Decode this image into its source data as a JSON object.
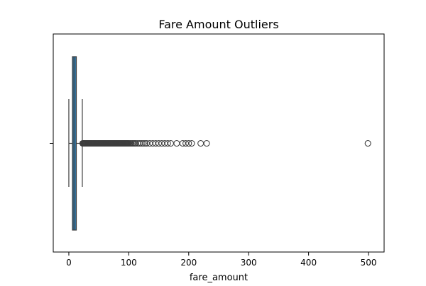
{
  "chart_data": {
    "type": "boxplot",
    "title": "Fare Amount Outliers",
    "xlabel": "fare_amount",
    "ylabel": "",
    "xlim": [
      -26,
      526
    ],
    "xticks": [
      0,
      100,
      200,
      300,
      400,
      500
    ],
    "xtick_labels": [
      "0",
      "100",
      "200",
      "300",
      "400",
      "500"
    ],
    "box": {
      "whisker_low": 0,
      "q1": 6,
      "median": 8.5,
      "q3": 12.5,
      "whisker_high": 22.5
    },
    "outliers": [
      23,
      24,
      25,
      26,
      27,
      28,
      29,
      30,
      31,
      32,
      33,
      34,
      35,
      36,
      37,
      38,
      39,
      40,
      41,
      42,
      43,
      44,
      45,
      46,
      47,
      48,
      49,
      50,
      51,
      52,
      53,
      54,
      55,
      56,
      57,
      58,
      59,
      60,
      61,
      62,
      63,
      64,
      65,
      66,
      67,
      68,
      69,
      70,
      71,
      72,
      73,
      74,
      75,
      76,
      77,
      78,
      79,
      80,
      81,
      82,
      83,
      84,
      85,
      86,
      87,
      88,
      89,
      90,
      91,
      92,
      93,
      94,
      95,
      96,
      97,
      98,
      99,
      100,
      102,
      104,
      106,
      108,
      110,
      112,
      115,
      118,
      121,
      124,
      127,
      130,
      135,
      140,
      145,
      150,
      155,
      160,
      165,
      170,
      180,
      190,
      195,
      200,
      205,
      220,
      230,
      499
    ],
    "colors": {
      "box_fill": "#3274a1",
      "line": "#3d3d3d",
      "outlier_edge": "#3d3d3d",
      "axis": "#000000"
    }
  }
}
